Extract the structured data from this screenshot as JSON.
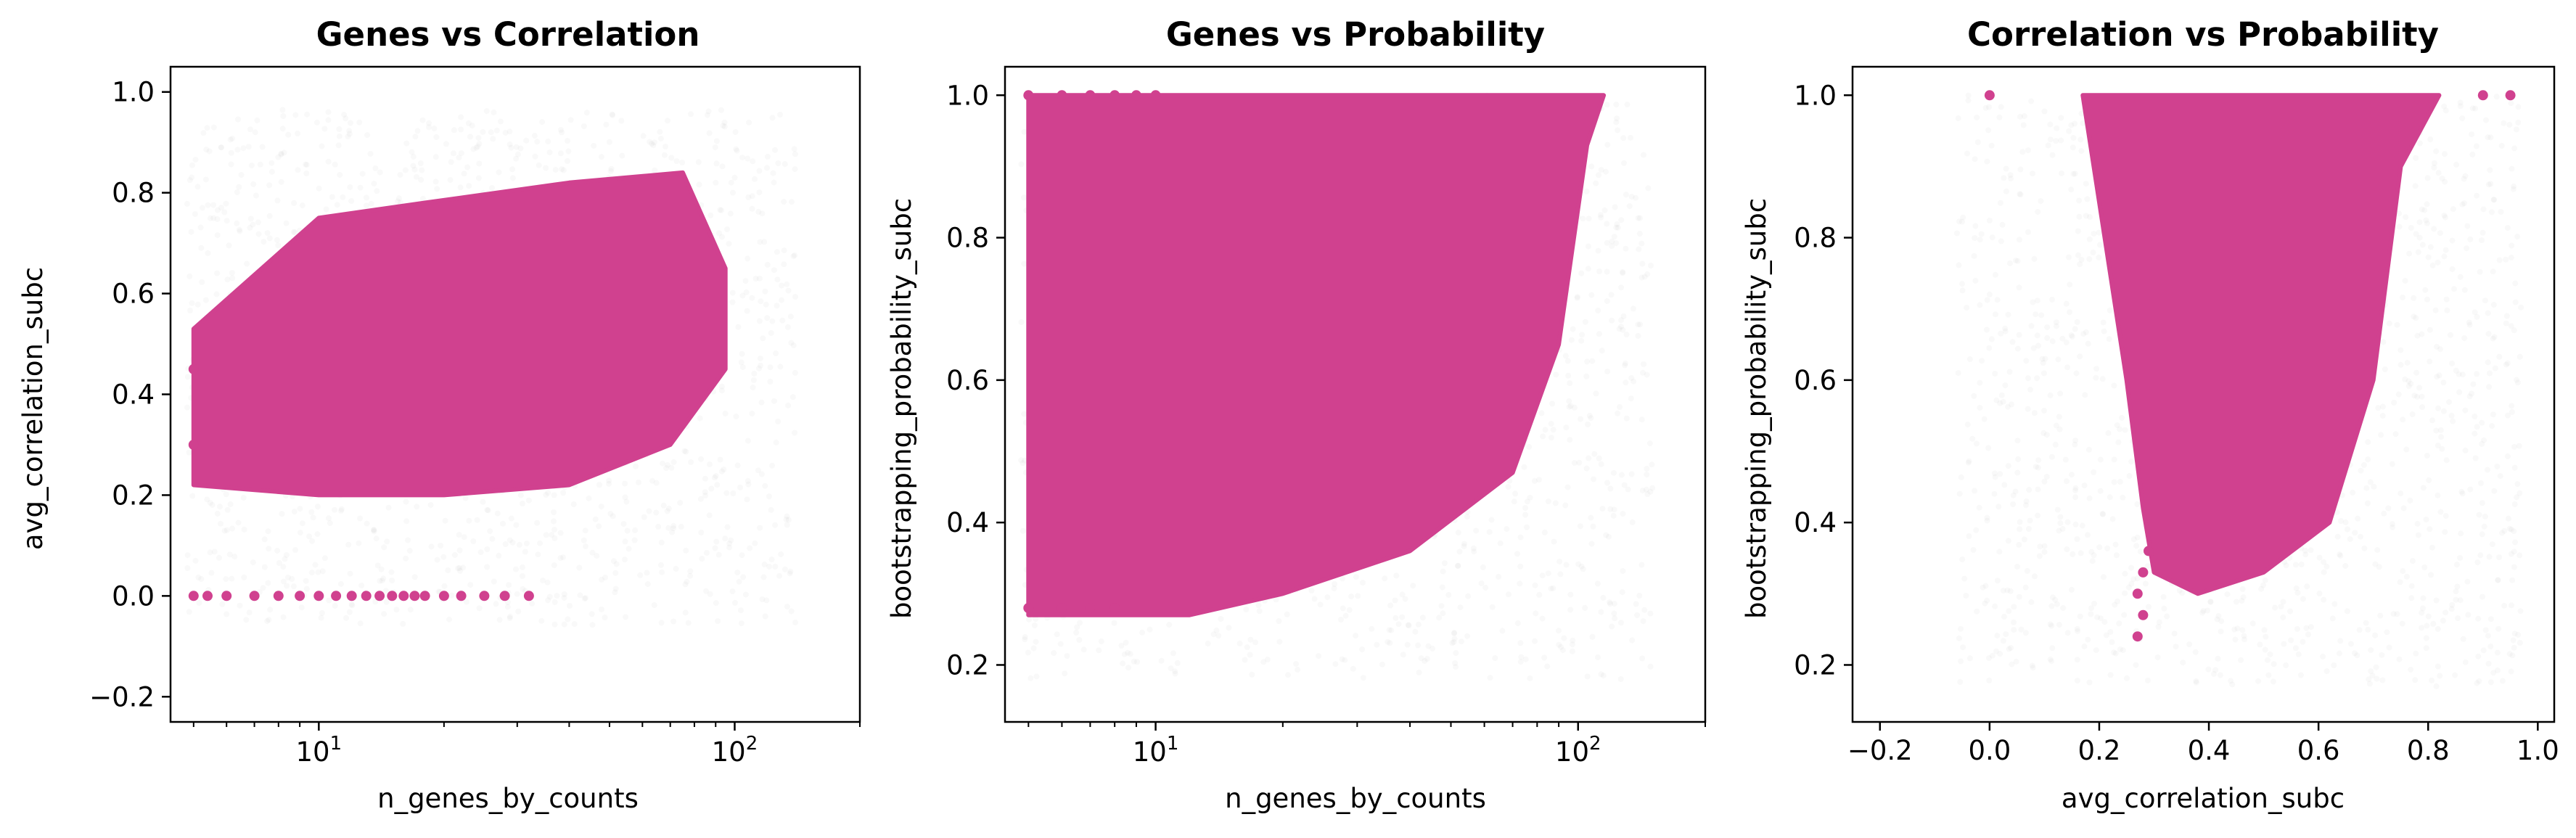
{
  "colors": {
    "highlight": "#d0418f",
    "background_points": "#9e9e9e"
  },
  "chart_data": [
    {
      "type": "scatter",
      "title": "Genes vs Correlation",
      "xlabel": "n_genes_by_counts",
      "ylabel": "avg_correlation_subc",
      "xscale": "log",
      "xlim": [
        4.4,
        200
      ],
      "ylim": [
        -0.25,
        1.05
      ],
      "x_ticks": [
        {
          "value": 10,
          "base": "10",
          "exp": "1"
        },
        {
          "value": 100,
          "base": "10",
          "exp": "2"
        }
      ],
      "y_ticks": [
        "−0.2",
        "0.0",
        "0.2",
        "0.4",
        "0.6",
        "0.8",
        "1.0"
      ],
      "grid": false,
      "highlight_outline": [
        [
          5,
          0.22
        ],
        [
          10,
          0.2
        ],
        [
          20,
          0.2
        ],
        [
          40,
          0.22
        ],
        [
          70,
          0.3
        ],
        [
          95,
          0.45
        ],
        [
          95,
          0.65
        ],
        [
          75,
          0.84
        ],
        [
          40,
          0.82
        ],
        [
          18,
          0.78
        ],
        [
          10,
          0.75
        ],
        [
          5,
          0.53
        ]
      ],
      "highlight_points": [
        [
          5,
          0.0
        ],
        [
          5.4,
          0.0
        ],
        [
          6,
          0.0
        ],
        [
          7,
          0.0
        ],
        [
          8,
          0.0
        ],
        [
          9,
          0.0
        ],
        [
          10,
          0.0
        ],
        [
          11,
          0.0
        ],
        [
          12,
          0.0
        ],
        [
          13,
          0.0
        ],
        [
          14,
          0.0
        ],
        [
          15,
          0.0
        ],
        [
          16,
          0.0
        ],
        [
          17,
          0.0
        ],
        [
          18,
          0.0
        ],
        [
          20,
          0.0
        ],
        [
          22,
          0.0
        ],
        [
          25,
          0.0
        ],
        [
          28,
          0.0
        ],
        [
          32,
          0.0
        ],
        [
          5,
          0.3
        ],
        [
          5,
          0.45
        ]
      ],
      "background_range": [
        [
          4.8,
          -0.06
        ],
        [
          140,
          0.97
        ]
      ]
    },
    {
      "type": "scatter",
      "title": "Genes vs Probability",
      "xlabel": "n_genes_by_counts",
      "ylabel": "bootstrapping_probability_subc",
      "xscale": "log",
      "xlim": [
        4.4,
        200
      ],
      "ylim": [
        0.12,
        1.04
      ],
      "x_ticks": [
        {
          "value": 10,
          "base": "10",
          "exp": "1"
        },
        {
          "value": 100,
          "base": "10",
          "exp": "2"
        }
      ],
      "y_ticks": [
        "0.2",
        "0.4",
        "0.6",
        "0.8",
        "1.0"
      ],
      "grid": false,
      "highlight_outline": [
        [
          5,
          0.27
        ],
        [
          12,
          0.27
        ],
        [
          20,
          0.3
        ],
        [
          40,
          0.36
        ],
        [
          70,
          0.47
        ],
        [
          90,
          0.65
        ],
        [
          105,
          0.93
        ],
        [
          115,
          1.0
        ],
        [
          5,
          1.0
        ]
      ],
      "highlight_points": [
        [
          5,
          1.0
        ],
        [
          6,
          1.0
        ],
        [
          7,
          1.0
        ],
        [
          8,
          1.0
        ],
        [
          9,
          1.0
        ],
        [
          10,
          1.0
        ],
        [
          5,
          0.28
        ],
        [
          6,
          0.28
        ],
        [
          7,
          0.28
        ],
        [
          8,
          0.28
        ]
      ],
      "background_range": [
        [
          4.8,
          0.18
        ],
        [
          150,
          1.0
        ]
      ]
    },
    {
      "type": "scatter",
      "title": "Correlation vs Probability",
      "xlabel": "avg_correlation_subc",
      "ylabel": "bootstrapping_probability_subc",
      "xscale": "linear",
      "xlim": [
        -0.25,
        1.03
      ],
      "ylim": [
        0.12,
        1.04
      ],
      "x_ticks": [
        "−0.2",
        "0.0",
        "0.2",
        "0.4",
        "0.6",
        "0.8",
        "1.0"
      ],
      "y_ticks": [
        "0.2",
        "0.4",
        "0.6",
        "0.8",
        "1.0"
      ],
      "grid": false,
      "highlight_outline": [
        [
          0.17,
          1.0
        ],
        [
          0.2,
          0.85
        ],
        [
          0.25,
          0.6
        ],
        [
          0.28,
          0.42
        ],
        [
          0.3,
          0.33
        ],
        [
          0.38,
          0.3
        ],
        [
          0.5,
          0.33
        ],
        [
          0.62,
          0.4
        ],
        [
          0.7,
          0.6
        ],
        [
          0.75,
          0.9
        ],
        [
          0.82,
          1.0
        ]
      ],
      "highlight_points": [
        [
          0.0,
          1.0
        ],
        [
          0.27,
          0.3
        ],
        [
          0.28,
          0.27
        ],
        [
          0.28,
          0.33
        ],
        [
          0.29,
          0.36
        ],
        [
          0.27,
          0.24
        ],
        [
          0.9,
          1.0
        ],
        [
          0.95,
          1.0
        ]
      ],
      "background_range": [
        [
          -0.06,
          0.17
        ],
        [
          0.97,
          1.0
        ]
      ]
    }
  ]
}
